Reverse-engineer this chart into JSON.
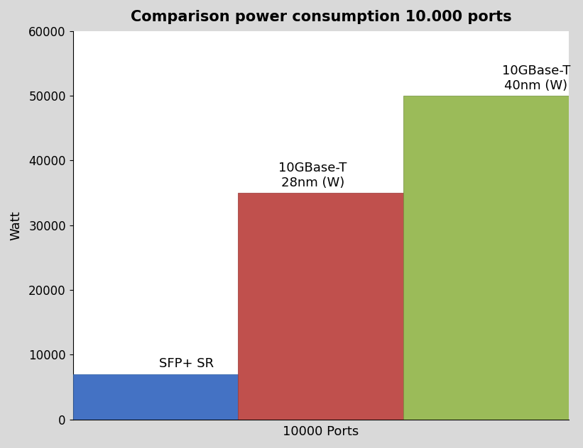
{
  "title": "Comparison power consumption 10.000 ports",
  "xlabel": "10000 Ports",
  "ylabel": "Watt",
  "values": [
    7000,
    35000,
    50000
  ],
  "bar_colors": [
    "#4472C4",
    "#C0504D",
    "#9BBB59"
  ],
  "ylim": [
    0,
    60000
  ],
  "yticks": [
    0,
    10000,
    20000,
    30000,
    40000,
    50000,
    60000
  ],
  "title_fontsize": 15,
  "axis_label_fontsize": 13,
  "tick_fontsize": 12,
  "bar_label_fontsize": 13,
  "background_color": "#FFFFFF",
  "figure_background": "#D9D9D9",
  "bar_label_0": "SFP+ SR",
  "bar_label_1": "10GBase-T\n28nm (W)",
  "bar_label_2": "10GBase-T\n40nm (W)"
}
